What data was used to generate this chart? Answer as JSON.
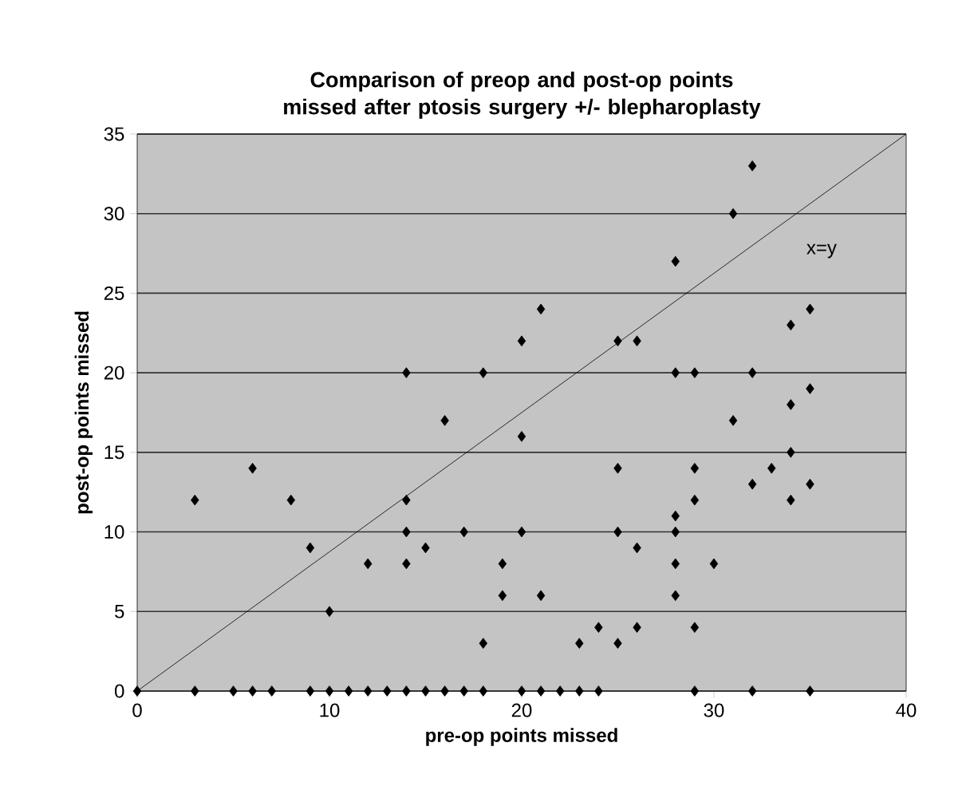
{
  "chart_data": {
    "type": "scatter",
    "title": "Comparison of preop and post-op points missed after ptosis surgery +/- blepharoplasty",
    "xlabel": "pre-op points missed",
    "ylabel": "post-op points missed",
    "xlim": [
      0,
      40
    ],
    "ylim": [
      0,
      35
    ],
    "xticks": [
      0,
      10,
      20,
      30,
      40
    ],
    "yticks": [
      0,
      5,
      10,
      15,
      20,
      25,
      30,
      35
    ],
    "grid": "y",
    "marker": "diamond",
    "series": [
      {
        "color": "#000000",
        "x": [
          0,
          3,
          5,
          6,
          7,
          9,
          10,
          11,
          12,
          13,
          14,
          15,
          16,
          17,
          18,
          20,
          21,
          22,
          23,
          24,
          29,
          32,
          35,
          3,
          6,
          8,
          9,
          10,
          12,
          14,
          14,
          14,
          14,
          15,
          16,
          17,
          18,
          18,
          19,
          19,
          20,
          20,
          20,
          21,
          21,
          23,
          24,
          25,
          26,
          25,
          26,
          25,
          25,
          26,
          28,
          28,
          29,
          28,
          28,
          28,
          28,
          29,
          29,
          29,
          30,
          31,
          32,
          31,
          32,
          32,
          33,
          34,
          35,
          34,
          35,
          34,
          34,
          35
        ],
        "values": [
          0,
          0,
          0,
          0,
          0,
          0,
          0,
          0,
          0,
          0,
          0,
          0,
          0,
          0,
          0,
          0,
          0,
          0,
          0,
          0,
          0,
          0,
          0,
          12,
          14,
          12,
          9,
          5,
          8,
          20,
          12,
          10,
          8,
          9,
          17,
          10,
          20,
          3,
          8,
          6,
          22,
          16,
          10,
          24,
          6,
          3,
          4,
          3,
          4,
          22,
          22,
          14,
          10,
          9,
          27,
          20,
          20,
          11,
          10,
          8,
          6,
          14,
          12,
          4,
          8,
          30,
          33,
          17,
          20,
          13,
          14,
          23,
          24,
          18,
          19,
          15,
          12,
          13
        ]
      },
      {
        "type": "line",
        "color": "#000000",
        "marker": "none",
        "x": [
          0,
          40
        ],
        "values": [
          0,
          35
        ]
      }
    ],
    "annotations": [
      "x=y"
    ]
  }
}
